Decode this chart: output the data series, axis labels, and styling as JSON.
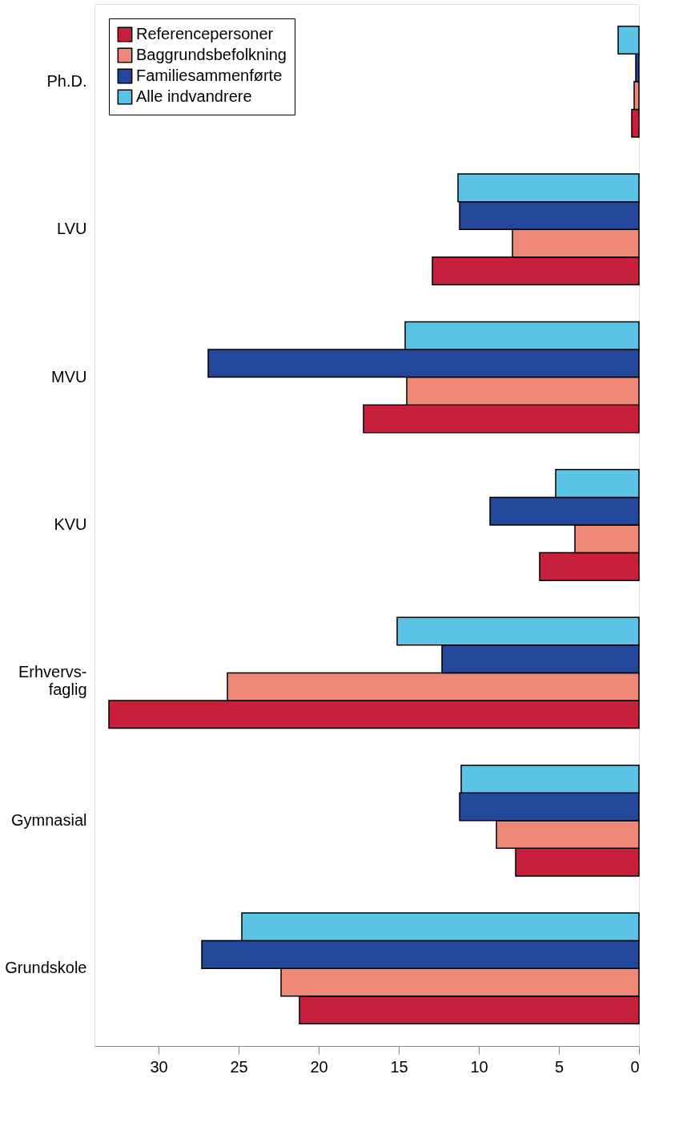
{
  "chart_data": {
    "type": "bar",
    "orientation": "horizontal",
    "categories": [
      "Ph.D.",
      "LVU",
      "MVU",
      "KVU",
      "Erhvervs-\nfaglig",
      "Gymnasial",
      "Grundskole"
    ],
    "series": [
      {
        "name": "Referencepersoner",
        "color": "#c8203c",
        "values": [
          0.45,
          12.9,
          17.2,
          6.2,
          33.1,
          7.7,
          21.2
        ]
      },
      {
        "name": "Baggrundsbefolkning",
        "color": "#f08878",
        "values": [
          0.3,
          7.9,
          14.5,
          4.0,
          25.7,
          8.9,
          22.35
        ]
      },
      {
        "name": "Familiesammenførte",
        "color": "#23479a",
        "values": [
          0.2,
          11.2,
          26.9,
          9.3,
          12.3,
          11.2,
          27.3
        ]
      },
      {
        "name": "Alle indvandrere",
        "color": "#5bc4e6",
        "values": [
          1.3,
          11.3,
          14.6,
          5.2,
          15.1,
          11.1,
          24.8
        ]
      }
    ],
    "xlim": [
      34,
      0
    ],
    "xticks": [
      0,
      5,
      10,
      15,
      20,
      25,
      30
    ],
    "grid": false,
    "legend": "top left"
  }
}
